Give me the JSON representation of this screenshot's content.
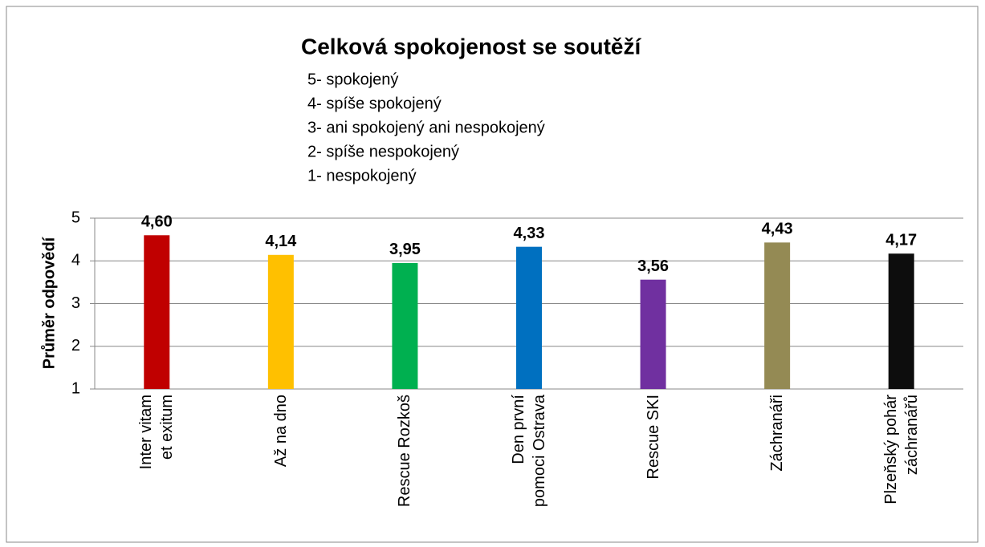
{
  "chart_data": {
    "type": "bar",
    "title": "Celková spokojenost se soutěží",
    "subtitle": [
      "5- spokojený",
      "4- spíše spokojený",
      "3- ani spokojený ani nespokojený",
      "2- spíše nespokojený",
      "1- nespokojený"
    ],
    "y_label": "Průměr odpovědí",
    "categories": [
      "Inter vitam et exitum",
      "Až na dno",
      "Rescue Rozkoš",
      "Den první pomoci Ostrava",
      "Rescue SKI",
      "Záchranáři",
      "Plzeňský pohár záchranářů"
    ],
    "values": [
      4.6,
      4.14,
      3.95,
      4.33,
      3.56,
      4.43,
      4.17
    ],
    "value_labels": [
      "4,60",
      "4,14",
      "3,95",
      "4,33",
      "3,56",
      "4,43",
      "4,17"
    ],
    "colors": [
      "#c00000",
      "#ffc000",
      "#00b050",
      "#0070c0",
      "#7030a0",
      "#948a54",
      "#0d0d0d"
    ],
    "ylim": [
      1,
      5
    ],
    "yticks": [
      1,
      2,
      3,
      4,
      5
    ],
    "grid": true
  }
}
